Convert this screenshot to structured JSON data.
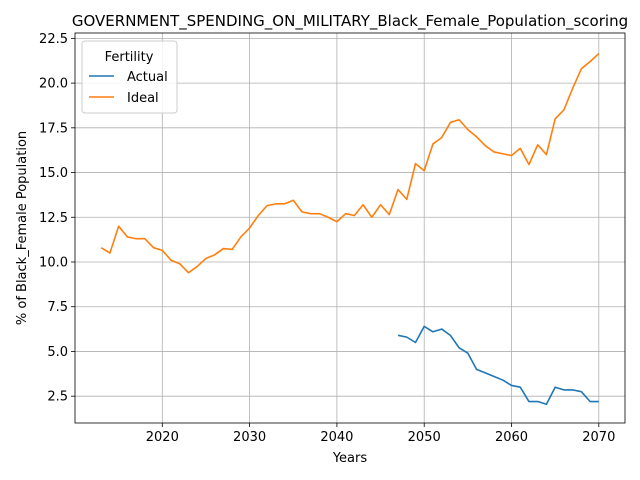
{
  "chart_data": {
    "type": "line",
    "title": "GOVERNMENT_SPENDING_ON_MILITARY_Black_Female_Population_scoring",
    "xlabel": "Years",
    "ylabel": "% of Black_Female Population",
    "xlim": [
      2010,
      2073
    ],
    "ylim": [
      1.0,
      22.8
    ],
    "xticks": [
      2020,
      2030,
      2040,
      2050,
      2060,
      2070
    ],
    "yticks": [
      2.5,
      5.0,
      7.5,
      10.0,
      12.5,
      15.0,
      17.5,
      20.0,
      22.5
    ],
    "grid": true,
    "legend": {
      "title": "Fertility",
      "placement": "upper-left"
    },
    "series": [
      {
        "name": "Actual",
        "color": "#1f77b4",
        "x": [
          2047,
          2048,
          2049,
          2050,
          2051,
          2052,
          2053,
          2054,
          2055,
          2056,
          2057,
          2058,
          2059,
          2060,
          2061,
          2062,
          2063,
          2064,
          2065,
          2066,
          2067,
          2068,
          2069,
          2070
        ],
        "y": [
          5.9,
          5.8,
          5.5,
          6.4,
          6.1,
          6.25,
          5.9,
          5.2,
          4.9,
          4.0,
          3.8,
          3.6,
          3.4,
          3.1,
          3.0,
          2.2,
          2.2,
          2.05,
          3.0,
          2.85,
          2.85,
          2.75,
          2.2,
          2.2
        ]
      },
      {
        "name": "Ideal",
        "color": "#ff7f0e",
        "x": [
          2013,
          2014,
          2015,
          2016,
          2017,
          2018,
          2019,
          2020,
          2021,
          2022,
          2023,
          2024,
          2025,
          2026,
          2027,
          2028,
          2029,
          2030,
          2031,
          2032,
          2033,
          2034,
          2035,
          2036,
          2037,
          2038,
          2039,
          2040,
          2041,
          2042,
          2043,
          2044,
          2045,
          2046,
          2047,
          2048,
          2049,
          2050,
          2051,
          2052,
          2053,
          2054,
          2055,
          2056,
          2057,
          2058,
          2059,
          2060,
          2061,
          2062,
          2063,
          2064,
          2065,
          2066,
          2067,
          2068,
          2069,
          2070
        ],
        "y": [
          10.8,
          10.5,
          12.0,
          11.4,
          11.3,
          11.3,
          10.8,
          10.65,
          10.1,
          9.9,
          9.4,
          9.75,
          10.2,
          10.4,
          10.75,
          10.7,
          11.4,
          11.9,
          12.6,
          13.15,
          13.25,
          13.25,
          13.45,
          12.8,
          12.7,
          12.7,
          12.5,
          12.25,
          12.7,
          12.6,
          13.2,
          12.5,
          13.2,
          12.65,
          14.05,
          13.5,
          15.5,
          15.1,
          16.6,
          16.95,
          17.8,
          17.95,
          17.4,
          17.0,
          16.5,
          16.15,
          16.05,
          15.95,
          16.35,
          15.45,
          16.55,
          16.0,
          18.0,
          18.5,
          19.7,
          20.8,
          21.2,
          21.65
        ]
      }
    ]
  }
}
